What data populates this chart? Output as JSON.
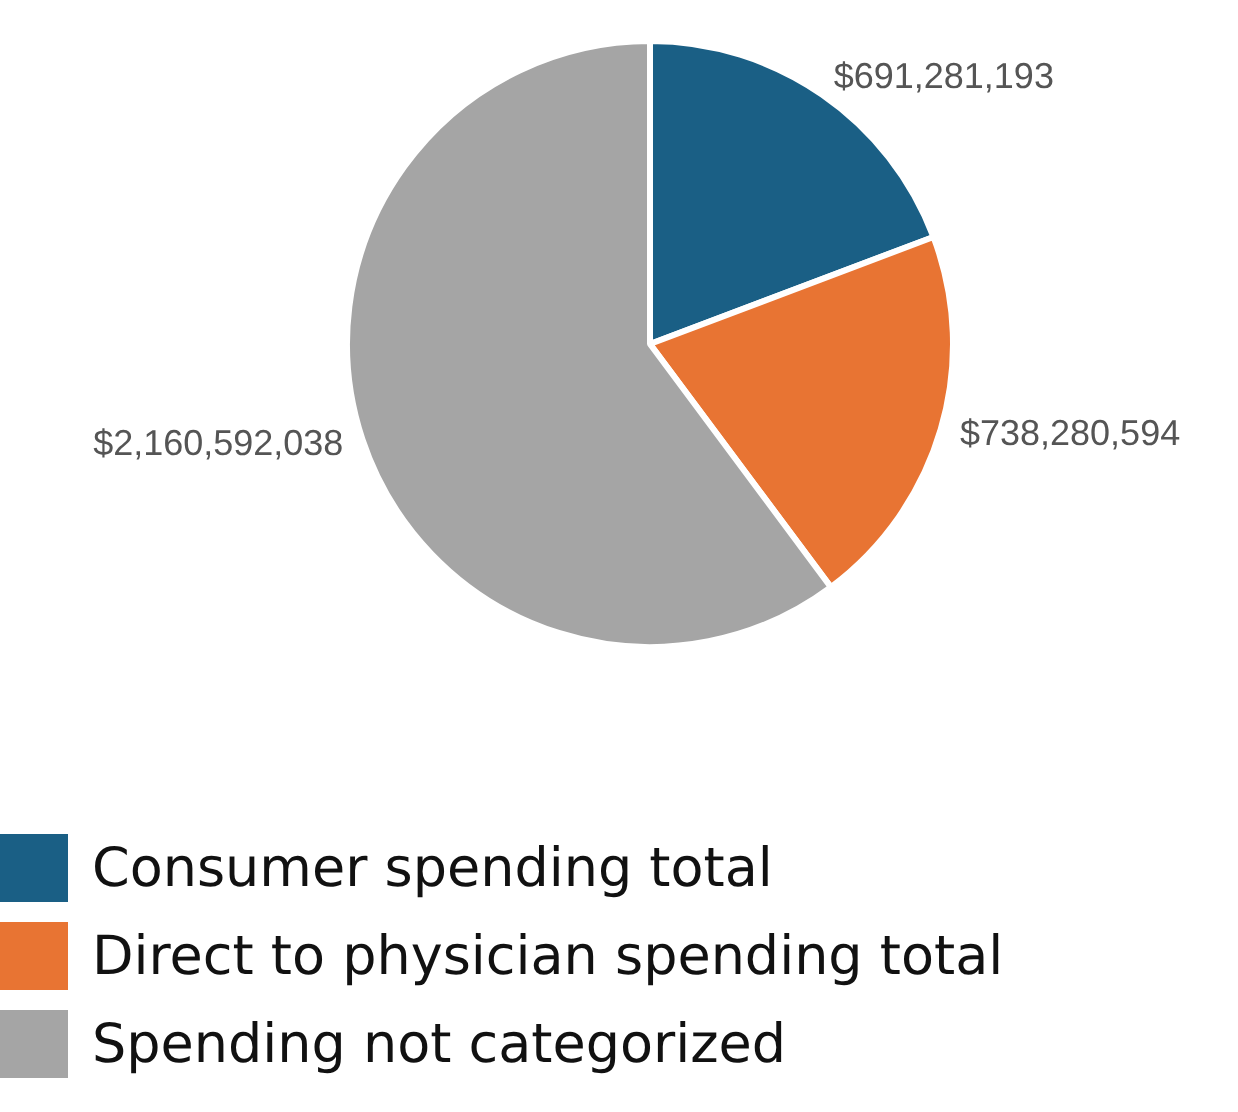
{
  "chart_data": {
    "type": "pie",
    "categories": [
      "Consumer spending total",
      "Direct to physician spending total",
      "Spending not categorized"
    ],
    "values": [
      691281193,
      738280594,
      2160592038
    ],
    "colors": [
      "#1a5f85",
      "#e87433",
      "#a5a5a5"
    ],
    "value_labels": [
      "$691,281,193",
      "$738,280,594",
      "$2,160,592,038"
    ],
    "legend": "bottom left"
  }
}
